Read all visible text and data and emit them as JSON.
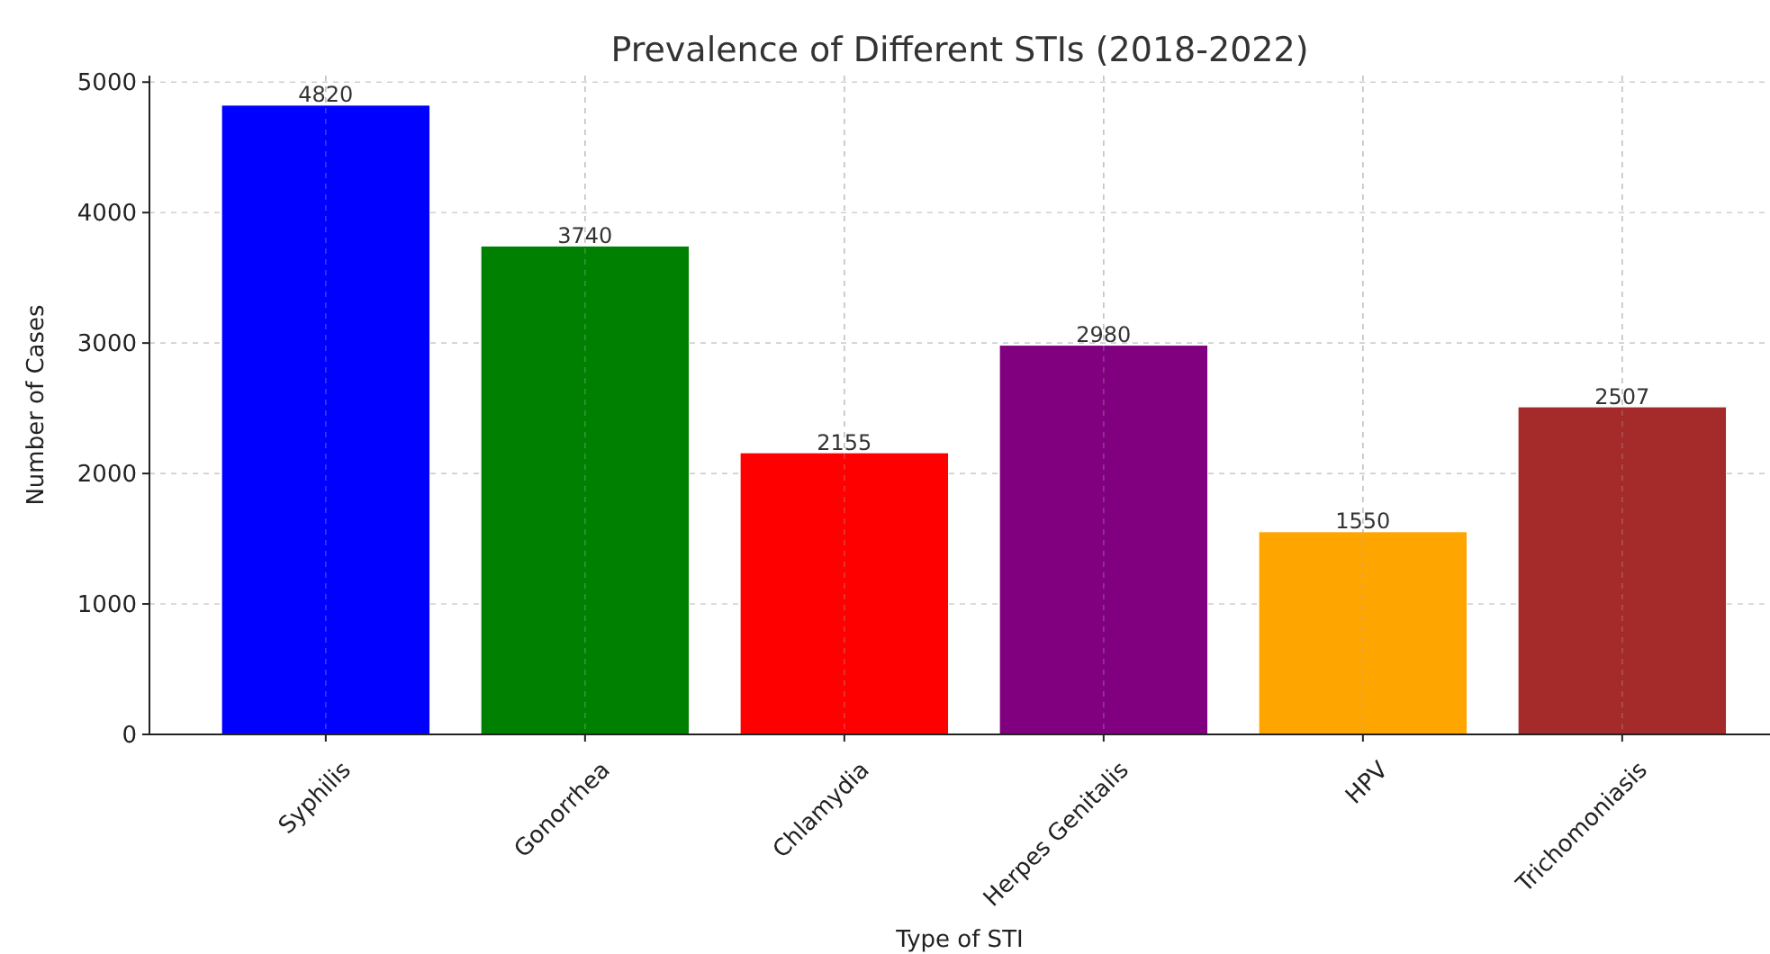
{
  "chart_data": {
    "type": "bar",
    "title": "Prevalence of Different STIs (2018-2022)",
    "xlabel": "Type of STI",
    "ylabel": "Number of Cases",
    "categories": [
      "Syphilis",
      "Gonorrhea",
      "Chlamydia",
      "Herpes Genitalis",
      "HPV",
      "Trichomoniasis"
    ],
    "values": [
      4820,
      3740,
      2155,
      2980,
      1550,
      2507
    ],
    "colors": [
      "#0000ff",
      "#008000",
      "#ff0000",
      "#800080",
      "#ffa500",
      "#a52a2a"
    ],
    "ylim": [
      0,
      5050
    ],
    "yticks": [
      0,
      1000,
      2000,
      3000,
      4000,
      5000
    ],
    "grid": true,
    "data_labels": true
  }
}
